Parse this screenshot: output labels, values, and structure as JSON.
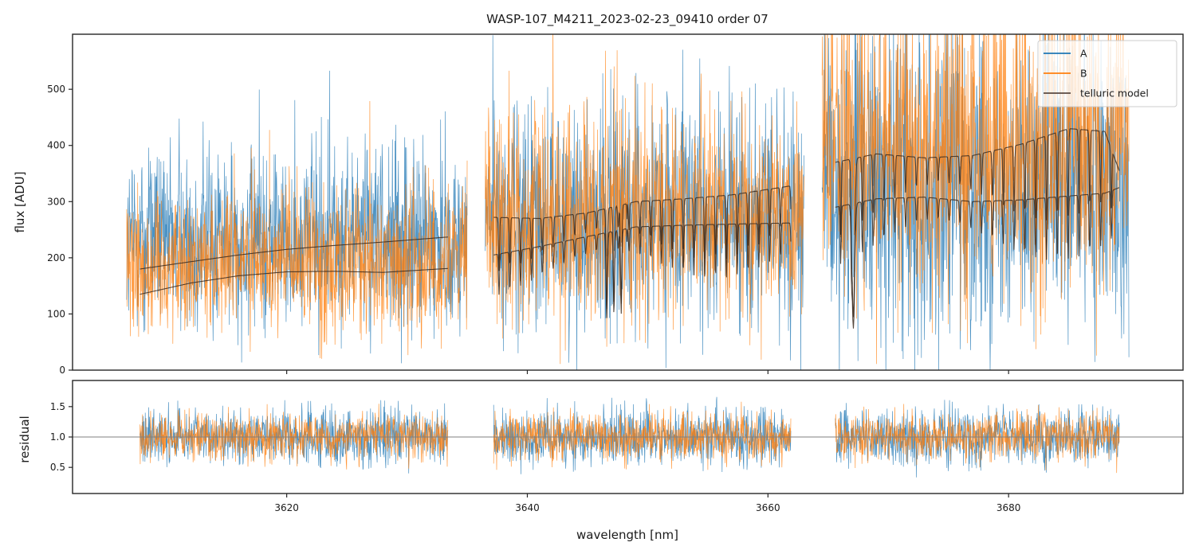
{
  "chart_data": [
    {
      "id": "flux",
      "type": "line",
      "title": "WASP-107_M4211_2023-02-23_09410  order 07",
      "xlabel": "",
      "ylabel": "flux [ADU]",
      "xlim": [
        3602.2,
        3694.5
      ],
      "ylim": [
        0,
        598
      ],
      "xticks": [
        3620,
        3640,
        3660,
        3680
      ],
      "xtick_labels_shown": false,
      "yticks": [
        0,
        100,
        200,
        300,
        400,
        500
      ],
      "ytick_labels": [
        "0",
        "100",
        "200",
        "300",
        "400",
        "500"
      ],
      "grid": false,
      "legend": {
        "placement": "top-right",
        "entries": [
          {
            "label": "A",
            "color": "#1f77b4"
          },
          {
            "label": "B",
            "color": "#ff7f0e"
          },
          {
            "label": "telluric model",
            "color": "#5a4a42"
          }
        ]
      },
      "series": [
        {
          "name": "A",
          "color": "#1f77b4",
          "style": "noisy spectrum",
          "segments": [
            {
              "x_range": [
                3606.7,
                3635.0
              ],
              "typical_level": 230,
              "noise_amplitude": 110
            },
            {
              "x_range": [
                3636.5,
                3663.0
              ],
              "typical_level": 270,
              "noise_amplitude": 140
            },
            {
              "x_range": [
                3664.5,
                3690.0
              ],
              "typical_level": 320,
              "noise_amplitude": 190
            }
          ]
        },
        {
          "name": "B",
          "color": "#ff7f0e",
          "style": "noisy spectrum",
          "segments": [
            {
              "x_range": [
                3606.7,
                3635.0
              ],
              "typical_level": 190,
              "noise_amplitude": 90
            },
            {
              "x_range": [
                3636.5,
                3663.0
              ],
              "typical_level": 270,
              "noise_amplitude": 130
            },
            {
              "x_range": [
                3664.5,
                3690.0
              ],
              "typical_level": 400,
              "noise_amplitude": 200
            }
          ]
        },
        {
          "name": "telluric model (upper)",
          "color": "#5a4a42",
          "segments": [
            {
              "x": [
                3607.8,
                3612,
                3616,
                3620,
                3624,
                3628,
                3633.4
              ],
              "y": [
                180,
                193,
                205,
                215,
                222,
                228,
                237
              ]
            },
            {
              "x": [
                3637.2,
                3641,
                3645,
                3649,
                3653,
                3657,
                3661.9
              ],
              "y": [
                272,
                270,
                280,
                300,
                305,
                312,
                328
              ]
            },
            {
              "x": [
                3665.6,
                3669,
                3673,
                3677,
                3681,
                3685,
                3688,
                3689.2
              ],
              "y": [
                370,
                385,
                378,
                382,
                402,
                430,
                425,
                355
              ]
            }
          ]
        },
        {
          "name": "telluric model (lower)",
          "color": "#5a4a42",
          "segments": [
            {
              "x": [
                3607.8,
                3612,
                3616,
                3620,
                3624,
                3628,
                3633.4
              ],
              "y": [
                135,
                155,
                168,
                175,
                176,
                174,
                181
              ]
            },
            {
              "x": [
                3637.2,
                3641,
                3645,
                3649,
                3653,
                3657,
                3661.9
              ],
              "y": [
                205,
                220,
                238,
                255,
                258,
                260,
                262
              ]
            },
            {
              "x": [
                3665.6,
                3669,
                3673,
                3677,
                3681,
                3685,
                3688,
                3689.2
              ],
              "y": [
                290,
                305,
                308,
                300,
                303,
                310,
                315,
                325
              ]
            }
          ]
        }
      ]
    },
    {
      "id": "residual",
      "type": "line",
      "title": "",
      "xlabel": "wavelength [nm]",
      "ylabel": "residual",
      "xlim": [
        3602.2,
        3694.5
      ],
      "ylim": [
        0.07,
        1.93
      ],
      "xticks": [
        3620,
        3640,
        3660,
        3680
      ],
      "xtick_labels": [
        "3620",
        "3640",
        "3660",
        "3680"
      ],
      "yticks": [
        0.5,
        1.0,
        1.5
      ],
      "ytick_labels": [
        "0.5",
        "1.0",
        "1.5"
      ],
      "reference_line": {
        "y": 1.0,
        "color": "#7f7f7f"
      },
      "grid": false,
      "series": [
        {
          "name": "A",
          "color": "#1f77b4",
          "center": 1.0,
          "noise_amplitude": 0.35,
          "segments": [
            [
              3607.8,
              3633.4
            ],
            [
              3637.2,
              3661.9
            ],
            [
              3665.6,
              3689.2
            ]
          ]
        },
        {
          "name": "B",
          "color": "#ff7f0e",
          "center": 1.0,
          "noise_amplitude": 0.3,
          "segments": [
            [
              3607.8,
              3633.4
            ],
            [
              3637.2,
              3661.9
            ],
            [
              3665.6,
              3689.2
            ]
          ]
        }
      ]
    }
  ]
}
